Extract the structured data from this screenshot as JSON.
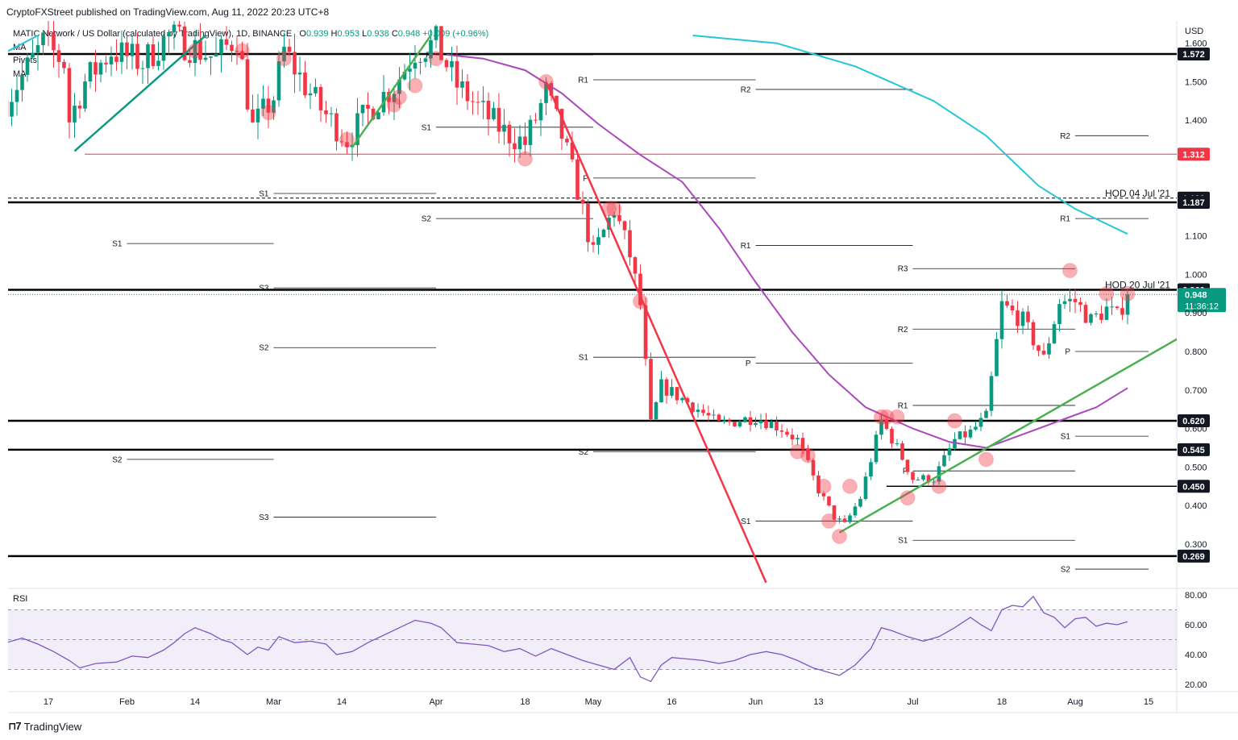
{
  "header": {
    "publisher": "CryptoFXStreet published on TradingView.com, Aug 11, 2022 20:23 UTC+8",
    "symbol": "MATIC Network / US Dollar (calculated by TradingView), 1D, BINANCE",
    "ohlc": {
      "o_label": "O",
      "o": "0.939",
      "h_label": "H",
      "h": "0.953",
      "l_label": "L",
      "l": "0.938",
      "c_label": "C",
      "c": "0.948",
      "change": "+0.009 (+0.96%)"
    },
    "indicators": [
      "MA",
      "Pivots",
      "MA"
    ]
  },
  "footer": {
    "brand": "TradingView"
  },
  "chart_data": {
    "type": "candlestick",
    "currency": "USD",
    "price_axis": {
      "min": 0.2,
      "max": 1.6,
      "ticks": [
        "0.300",
        "0.400",
        "0.500",
        "0.600",
        "0.700",
        "0.800",
        "0.900",
        "1.000",
        "1.100",
        "1.400",
        "1.500",
        "1.600"
      ]
    },
    "time_axis_labels": [
      {
        "label": "17",
        "date": "2022-01-17"
      },
      {
        "label": "Feb",
        "date": "2022-02-01"
      },
      {
        "label": "14",
        "date": "2022-02-14"
      },
      {
        "label": "Mar",
        "date": "2022-03-01"
      },
      {
        "label": "14",
        "date": "2022-03-14"
      },
      {
        "label": "Apr",
        "date": "2022-04-01"
      },
      {
        "label": "18",
        "date": "2022-04-18"
      },
      {
        "label": "May",
        "date": "2022-05-01"
      },
      {
        "label": "16",
        "date": "2022-05-16"
      },
      {
        "label": "Jun",
        "date": "2022-06-01"
      },
      {
        "label": "13",
        "date": "2022-06-13"
      },
      {
        "label": "Jul",
        "date": "2022-07-01"
      },
      {
        "label": "18",
        "date": "2022-07-18"
      },
      {
        "label": "Aug",
        "date": "2022-08-01"
      },
      {
        "label": "15",
        "date": "2022-08-15"
      }
    ],
    "key_levels": [
      {
        "value": 1.572,
        "label": "1.572",
        "style": "solid-thick"
      },
      {
        "value": 1.312,
        "label": "1.312",
        "style": "red-thin"
      },
      {
        "value": 1.198,
        "label": "1.198",
        "style": "dashed"
      },
      {
        "value": 1.187,
        "label": "1.187",
        "style": "solid-thick"
      },
      {
        "value": 0.96,
        "label": "0.960",
        "style": "solid-thick"
      },
      {
        "value": 0.62,
        "label": "0.620",
        "style": "solid-thick"
      },
      {
        "value": 0.545,
        "label": "0.545",
        "style": "solid-thick"
      },
      {
        "value": 0.45,
        "label": "0.450",
        "style": "solid-thin"
      },
      {
        "value": 0.269,
        "label": "0.269",
        "style": "solid-thick"
      }
    ],
    "current_price": {
      "value": 0.948,
      "label": "0.948",
      "countdown": "11:36:12"
    },
    "annotations": [
      {
        "text": "HOD 04 Jul '21",
        "value": 1.198
      },
      {
        "text": "HOD 20 Jul '21",
        "value": 0.96
      }
    ],
    "pivots": [
      {
        "label": "P",
        "value": 1.57,
        "from": "2022-04-01",
        "to": "2022-05-01"
      },
      {
        "label": "R1",
        "value": 1.505,
        "from": "2022-05-01",
        "to": "2022-06-01"
      },
      {
        "label": "S1",
        "value": 1.382,
        "from": "2022-04-01",
        "to": "2022-05-01"
      },
      {
        "label": "P",
        "value": 1.25,
        "from": "2022-05-01",
        "to": "2022-06-01"
      },
      {
        "label": "S1",
        "value": 1.21,
        "from": "2022-03-01",
        "to": "2022-04-01"
      },
      {
        "label": "S2",
        "value": 1.145,
        "from": "2022-04-01",
        "to": "2022-05-01"
      },
      {
        "label": "S1",
        "value": 1.08,
        "from": "2022-02-01",
        "to": "2022-03-01"
      },
      {
        "label": "R2",
        "value": 1.48,
        "from": "2022-06-01",
        "to": "2022-07-01"
      },
      {
        "label": "R2",
        "value": 1.36,
        "from": "2022-08-01",
        "to": "2022-08-15"
      },
      {
        "label": "R1",
        "value": 1.145,
        "from": "2022-08-01",
        "to": "2022-08-15"
      },
      {
        "label": "R1",
        "value": 1.075,
        "from": "2022-06-01",
        "to": "2022-07-01"
      },
      {
        "label": "R3",
        "value": 1.015,
        "from": "2022-07-01",
        "to": "2022-08-01"
      },
      {
        "label": "S3",
        "value": 0.965,
        "from": "2022-03-01",
        "to": "2022-04-01"
      },
      {
        "label": "R2",
        "value": 0.858,
        "from": "2022-07-01",
        "to": "2022-08-01"
      },
      {
        "label": "S2",
        "value": 0.81,
        "from": "2022-03-01",
        "to": "2022-04-01"
      },
      {
        "label": "S1",
        "value": 0.785,
        "from": "2022-05-01",
        "to": "2022-06-01"
      },
      {
        "label": "P",
        "value": 0.77,
        "from": "2022-06-01",
        "to": "2022-07-01"
      },
      {
        "label": "P",
        "value": 0.8,
        "from": "2022-08-01",
        "to": "2022-08-15"
      },
      {
        "label": "R1",
        "value": 0.66,
        "from": "2022-07-01",
        "to": "2022-08-01"
      },
      {
        "label": "S1",
        "value": 0.58,
        "from": "2022-08-01",
        "to": "2022-08-15"
      },
      {
        "label": "S2",
        "value": 0.54,
        "from": "2022-05-01",
        "to": "2022-06-01"
      },
      {
        "label": "S2",
        "value": 0.52,
        "from": "2022-02-01",
        "to": "2022-03-01"
      },
      {
        "label": "P",
        "value": 0.49,
        "from": "2022-07-01",
        "to": "2022-08-01"
      },
      {
        "label": "S3",
        "value": 0.37,
        "from": "2022-03-01",
        "to": "2022-04-01"
      },
      {
        "label": "S1",
        "value": 0.36,
        "from": "2022-06-01",
        "to": "2022-07-01"
      },
      {
        "label": "S1",
        "value": 0.31,
        "from": "2022-07-01",
        "to": "2022-08-01"
      },
      {
        "label": "S2",
        "value": 0.235,
        "from": "2022-08-01",
        "to": "2022-08-15"
      }
    ],
    "moving_averages": [
      {
        "name": "MA",
        "color": "#26c6da",
        "points": [
          [
            "2022-05-20",
            1.62
          ],
          [
            "2022-06-05",
            1.6
          ],
          [
            "2022-06-20",
            1.54
          ],
          [
            "2022-07-05",
            1.45
          ],
          [
            "2022-07-15",
            1.36
          ],
          [
            "2022-07-25",
            1.23
          ],
          [
            "2022-08-01",
            1.17
          ],
          [
            "2022-08-11",
            1.105
          ]
        ]
      },
      {
        "name": "MA",
        "color": "#ab47bc",
        "points": [
          [
            "2022-04-03",
            1.57
          ],
          [
            "2022-04-10",
            1.56
          ],
          [
            "2022-04-18",
            1.53
          ],
          [
            "2022-04-25",
            1.47
          ],
          [
            "2022-05-02",
            1.39
          ],
          [
            "2022-05-10",
            1.31
          ],
          [
            "2022-05-18",
            1.24
          ],
          [
            "2022-05-25",
            1.12
          ],
          [
            "2022-06-01",
            0.98
          ],
          [
            "2022-06-08",
            0.85
          ],
          [
            "2022-06-15",
            0.74
          ],
          [
            "2022-06-22",
            0.655
          ],
          [
            "2022-07-01",
            0.6
          ],
          [
            "2022-07-08",
            0.565
          ],
          [
            "2022-07-15",
            0.55
          ],
          [
            "2022-07-22",
            0.585
          ],
          [
            "2022-07-29",
            0.62
          ],
          [
            "2022-08-05",
            0.655
          ],
          [
            "2022-08-11",
            0.705
          ]
        ]
      },
      {
        "name": "MA",
        "color": "#26c6da",
        "points": [
          [
            "2022-01-08",
            1.57
          ],
          [
            "2022-01-15",
            1.62
          ]
        ]
      }
    ],
    "trendlines": [
      {
        "color": "#089981",
        "from": [
          "2022-01-22",
          1.32
        ],
        "to": [
          "2022-02-16",
          1.62
        ]
      },
      {
        "color": "#4caf50",
        "from": [
          "2022-03-16",
          1.33
        ],
        "to": [
          "2022-03-31",
          1.62
        ]
      },
      {
        "color": "#f23645",
        "from": [
          "2022-04-22",
          1.5
        ],
        "to": [
          "2022-06-03",
          0.2
        ]
      },
      {
        "color": "#4caf50",
        "from": [
          "2022-06-17",
          0.33
        ],
        "to": [
          "2022-08-24",
          0.86
        ]
      }
    ],
    "highlight_points": [
      [
        "2022-02-14",
        1.58
      ],
      [
        "2022-02-23",
        1.58
      ],
      [
        "2022-03-03",
        1.56
      ],
      [
        "2022-02-28",
        1.42
      ],
      [
        "2022-03-15",
        1.35
      ],
      [
        "2022-03-24",
        1.44
      ],
      [
        "2022-03-25",
        1.46
      ],
      [
        "2022-03-28",
        1.49
      ],
      [
        "2022-04-01",
        1.56
      ],
      [
        "2022-04-18",
        1.3
      ],
      [
        "2022-04-22",
        1.5
      ],
      [
        "2022-05-04",
        1.17
      ],
      [
        "2022-05-05",
        1.17
      ],
      [
        "2022-05-10",
        0.93
      ],
      [
        "2022-06-09",
        0.54
      ],
      [
        "2022-06-11",
        0.53
      ],
      [
        "2022-06-14",
        0.45
      ],
      [
        "2022-06-15",
        0.36
      ],
      [
        "2022-06-19",
        0.45
      ],
      [
        "2022-06-17",
        0.32
      ],
      [
        "2022-06-25",
        0.63
      ],
      [
        "2022-06-26",
        0.63
      ],
      [
        "2022-06-28",
        0.63
      ],
      [
        "2022-06-30",
        0.42
      ],
      [
        "2022-07-06",
        0.45
      ],
      [
        "2022-07-09",
        0.62
      ],
      [
        "2022-07-15",
        0.52
      ],
      [
        "2022-07-31",
        1.01
      ],
      [
        "2022-08-07",
        0.95
      ],
      [
        "2022-08-11",
        0.95
      ]
    ]
  },
  "rsi": {
    "label": "RSI",
    "ticks": [
      "80.00",
      "60.00",
      "40.00",
      "20.00"
    ],
    "upper": 70,
    "lower": 30,
    "middle": 50,
    "series": [
      [
        "2022-01-09",
        48
      ],
      [
        "2022-01-12",
        51
      ],
      [
        "2022-01-15",
        47
      ],
      [
        "2022-01-18",
        42
      ],
      [
        "2022-01-21",
        36
      ],
      [
        "2022-01-23",
        31
      ],
      [
        "2022-01-26",
        34
      ],
      [
        "2022-01-30",
        35
      ],
      [
        "2022-02-02",
        39
      ],
      [
        "2022-02-05",
        38
      ],
      [
        "2022-02-08",
        43
      ],
      [
        "2022-02-10",
        48
      ],
      [
        "2022-02-12",
        54
      ],
      [
        "2022-02-14",
        58
      ],
      [
        "2022-02-17",
        54
      ],
      [
        "2022-02-19",
        50
      ],
      [
        "2022-02-21",
        48
      ],
      [
        "2022-02-24",
        40
      ],
      [
        "2022-02-26",
        45
      ],
      [
        "2022-02-28",
        43
      ],
      [
        "2022-03-02",
        52
      ],
      [
        "2022-03-05",
        48
      ],
      [
        "2022-03-08",
        49
      ],
      [
        "2022-03-11",
        47
      ],
      [
        "2022-03-13",
        40
      ],
      [
        "2022-03-16",
        42
      ],
      [
        "2022-03-19",
        48
      ],
      [
        "2022-03-22",
        53
      ],
      [
        "2022-03-25",
        58
      ],
      [
        "2022-03-28",
        63
      ],
      [
        "2022-03-31",
        61
      ],
      [
        "2022-04-02",
        58
      ],
      [
        "2022-04-05",
        48
      ],
      [
        "2022-04-08",
        47
      ],
      [
        "2022-04-11",
        46
      ],
      [
        "2022-04-14",
        42
      ],
      [
        "2022-04-17",
        44
      ],
      [
        "2022-04-20",
        39
      ],
      [
        "2022-04-23",
        44
      ],
      [
        "2022-04-26",
        40
      ],
      [
        "2022-04-29",
        36
      ],
      [
        "2022-05-02",
        33
      ],
      [
        "2022-05-05",
        30
      ],
      [
        "2022-05-08",
        38
      ],
      [
        "2022-05-10",
        25
      ],
      [
        "2022-05-12",
        22
      ],
      [
        "2022-05-14",
        33
      ],
      [
        "2022-05-16",
        38
      ],
      [
        "2022-05-19",
        37
      ],
      [
        "2022-05-22",
        36
      ],
      [
        "2022-05-25",
        34
      ],
      [
        "2022-05-28",
        36
      ],
      [
        "2022-05-31",
        40
      ],
      [
        "2022-06-03",
        42
      ],
      [
        "2022-06-06",
        40
      ],
      [
        "2022-06-09",
        36
      ],
      [
        "2022-06-12",
        31
      ],
      [
        "2022-06-15",
        28
      ],
      [
        "2022-06-17",
        26
      ],
      [
        "2022-06-20",
        33
      ],
      [
        "2022-06-23",
        44
      ],
      [
        "2022-06-25",
        58
      ],
      [
        "2022-06-27",
        56
      ],
      [
        "2022-06-30",
        52
      ],
      [
        "2022-07-03",
        49
      ],
      [
        "2022-07-06",
        52
      ],
      [
        "2022-07-09",
        58
      ],
      [
        "2022-07-12",
        65
      ],
      [
        "2022-07-14",
        60
      ],
      [
        "2022-07-16",
        56
      ],
      [
        "2022-07-18",
        70
      ],
      [
        "2022-07-20",
        73
      ],
      [
        "2022-07-22",
        72
      ],
      [
        "2022-07-24",
        79
      ],
      [
        "2022-07-26",
        68
      ],
      [
        "2022-07-28",
        65
      ],
      [
        "2022-07-30",
        58
      ],
      [
        "2022-08-01",
        64
      ],
      [
        "2022-08-03",
        65
      ],
      [
        "2022-08-05",
        59
      ],
      [
        "2022-08-07",
        61
      ],
      [
        "2022-08-09",
        60
      ],
      [
        "2022-08-11",
        62
      ]
    ]
  }
}
